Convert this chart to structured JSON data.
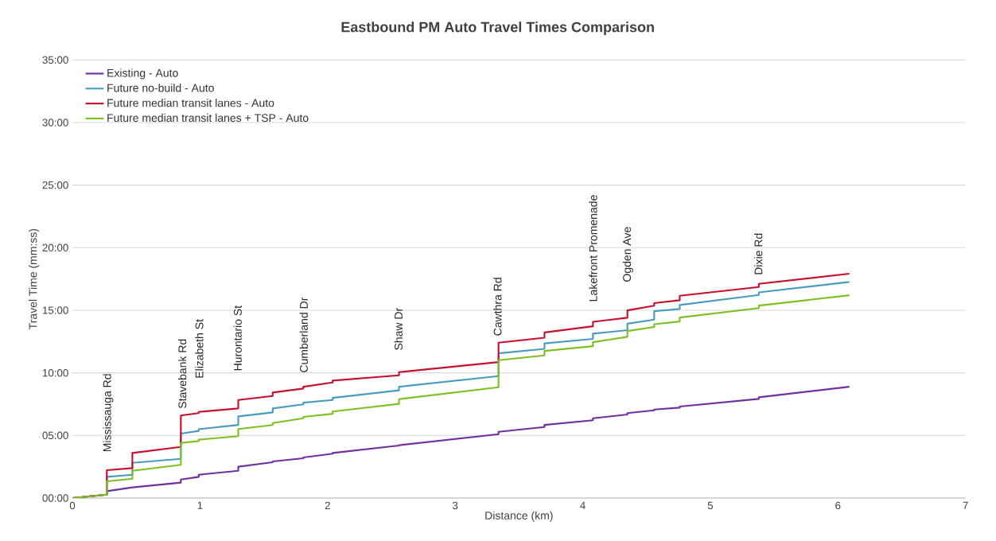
{
  "chart_data": {
    "type": "line",
    "title": "Eastbound PM Auto Travel Times Comparison",
    "xlabel": "Distance (km)",
    "ylabel": "Travel Time (mm:ss)",
    "x": [
      0,
      0.27,
      0.27,
      0.47,
      0.47,
      0.85,
      0.85,
      0.99,
      0.99,
      1.3,
      1.3,
      1.57,
      1.57,
      1.81,
      1.81,
      2.04,
      2.04,
      2.56,
      2.56,
      3.34,
      3.34,
      3.7,
      3.7,
      4.08,
      4.08,
      4.35,
      4.35,
      4.56,
      4.56,
      4.76,
      4.76,
      5.38,
      5.38,
      6.09
    ],
    "series": [
      {
        "name": "Existing - Auto",
        "color": "#7030a0",
        "values": [
          0,
          0.27,
          0.55,
          0.85,
          0.85,
          1.23,
          1.48,
          1.69,
          1.86,
          2.18,
          2.5,
          2.86,
          2.92,
          3.18,
          3.24,
          3.54,
          3.6,
          4.19,
          4.22,
          5.1,
          5.29,
          5.67,
          5.84,
          6.21,
          6.37,
          6.67,
          6.78,
          7.01,
          7.07,
          7.22,
          7.31,
          7.92,
          8.05,
          8.89
        ]
      },
      {
        "name": "Future no-build - Auto",
        "color": "#4a9bbf",
        "values": [
          0,
          0.27,
          1.69,
          1.86,
          2.81,
          3.13,
          5.15,
          5.36,
          5.5,
          5.84,
          6.52,
          6.84,
          7.16,
          7.48,
          7.62,
          7.83,
          8.0,
          8.6,
          8.89,
          9.74,
          11.56,
          11.92,
          12.35,
          12.71,
          13.13,
          13.41,
          13.93,
          14.25,
          14.93,
          15.1,
          15.42,
          16.22,
          16.43,
          17.26
        ]
      },
      {
        "name": "Future median transit lanes - Auto",
        "color": "#c8102e",
        "values": [
          0,
          0.27,
          2.22,
          2.39,
          3.6,
          4.08,
          6.59,
          6.78,
          6.88,
          7.16,
          7.83,
          8.15,
          8.43,
          8.75,
          8.89,
          9.23,
          9.38,
          9.8,
          10.06,
          10.86,
          12.41,
          12.81,
          13.23,
          13.72,
          14.08,
          14.4,
          14.99,
          15.36,
          15.57,
          15.8,
          16.16,
          16.86,
          17.11,
          17.92
        ]
      },
      {
        "name": "Future median transit lanes + TSP - Auto",
        "color": "#7cc021",
        "values": [
          0,
          0.27,
          1.33,
          1.54,
          2.18,
          2.65,
          4.4,
          4.55,
          4.66,
          4.94,
          5.51,
          5.83,
          5.99,
          6.37,
          6.48,
          6.73,
          6.91,
          7.52,
          7.9,
          8.85,
          11.01,
          11.39,
          11.75,
          12.13,
          12.45,
          12.88,
          13.34,
          13.66,
          13.89,
          14.1,
          14.42,
          15.17,
          15.37,
          16.2
        ]
      }
    ],
    "xlim": [
      0,
      7
    ],
    "xticks": [
      0,
      1,
      2,
      3,
      4,
      5,
      6,
      7
    ],
    "ylim": [
      0,
      35
    ],
    "yticks": [
      {
        "value": 0,
        "label": "00:00"
      },
      {
        "value": 5,
        "label": "05:00"
      },
      {
        "value": 10,
        "label": "10:00"
      },
      {
        "value": 15,
        "label": "15:00"
      },
      {
        "value": 20,
        "label": "20:00"
      },
      {
        "value": 25,
        "label": "25:00"
      },
      {
        "value": 30,
        "label": "30:00"
      },
      {
        "value": 35,
        "label": "35:00"
      }
    ],
    "grid": "y",
    "legend": "top left",
    "marker": "none",
    "line_style": "solid",
    "annotations": [
      "Mississauga Rd",
      "Stavebank Rd",
      "Elizabeth St",
      "Hurontario St",
      "Cumberland Dr",
      "Shaw Dr",
      "Cawthra Rd",
      "Lakefront Promenade",
      "Ogden Ave",
      "Dixie Rd"
    ]
  }
}
